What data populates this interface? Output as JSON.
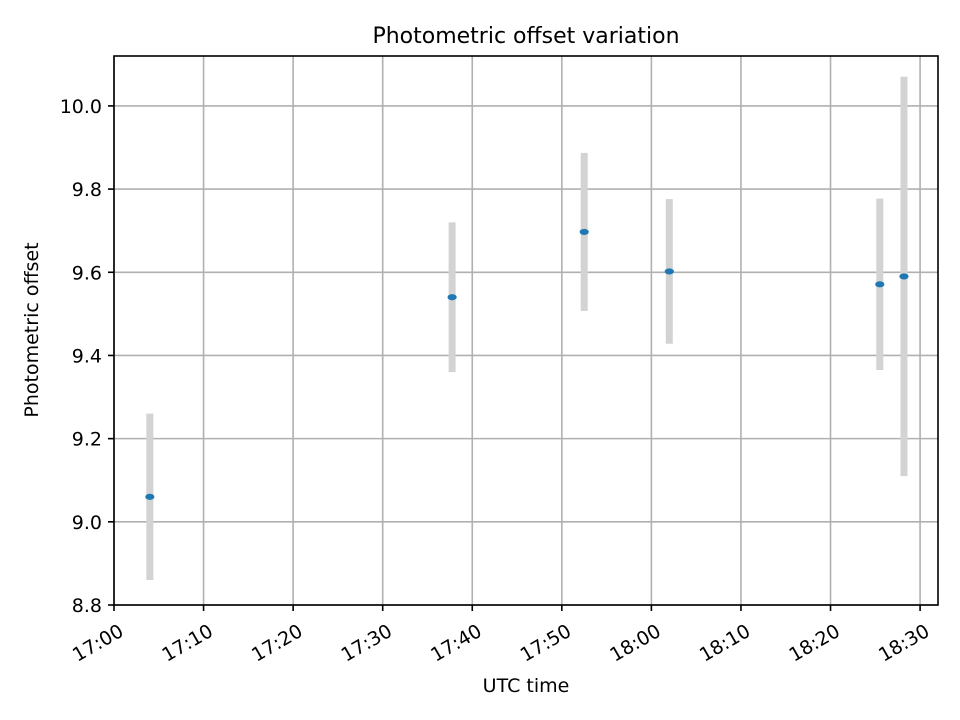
{
  "chart_data": {
    "type": "scatter",
    "title": "Photometric offset variation",
    "xlabel": "UTC time",
    "ylabel": "Photometric offset",
    "x_ticks": [
      "17:00",
      "17:10",
      "17:20",
      "17:30",
      "17:40",
      "17:50",
      "18:00",
      "18:10",
      "18:20",
      "18:30"
    ],
    "xlim": [
      "17:00",
      "18:32"
    ],
    "y_ticks": [
      "8.8",
      "9.0",
      "9.2",
      "9.4",
      "9.6",
      "9.8",
      "10.0"
    ],
    "ylim": [
      8.8,
      10.12
    ],
    "grid": true,
    "colors": {
      "point": "#1f77b4",
      "errorbar": "#d3d3d3"
    },
    "points": [
      {
        "time": "17:04",
        "y": 9.06,
        "yerr": 0.2
      },
      {
        "time": "17:37.75",
        "y": 9.54,
        "yerr": 0.18
      },
      {
        "time": "17:52.5",
        "y": 9.697,
        "yerr": 0.19
      },
      {
        "time": "18:02",
        "y": 9.602,
        "yerr": 0.174
      },
      {
        "time": "18:25.5",
        "y": 9.571,
        "yerr": 0.206
      },
      {
        "time": "18:28.2",
        "y": 9.59,
        "yerr": 0.48
      }
    ]
  }
}
